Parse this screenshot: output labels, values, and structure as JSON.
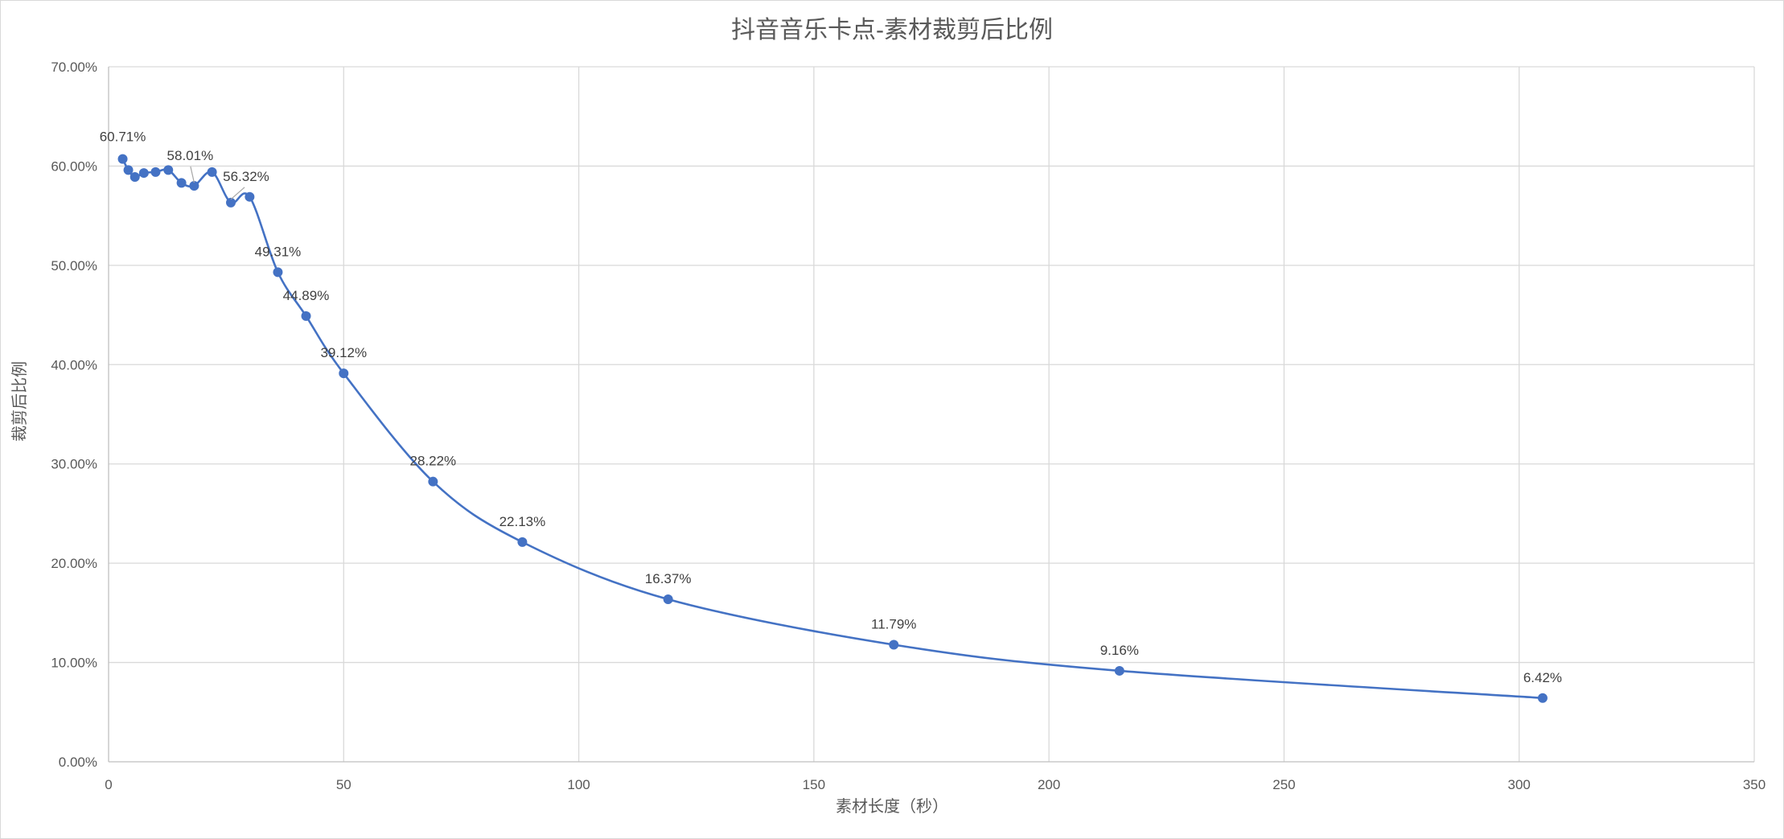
{
  "chart_data": {
    "type": "scatter",
    "title": "抖音音乐卡点-素材裁剪后比例",
    "xlabel": "素材长度（秒）",
    "ylabel": "裁剪后比例",
    "xlim": [
      0,
      350
    ],
    "ylim": [
      0,
      0.7
    ],
    "x_ticks": [
      0,
      50,
      100,
      150,
      200,
      250,
      300,
      350
    ],
    "y_ticks": [
      0,
      0.1,
      0.2,
      0.3,
      0.4,
      0.5,
      0.6,
      0.7
    ],
    "y_tick_labels": [
      "0.00%",
      "10.00%",
      "20.00%",
      "30.00%",
      "40.00%",
      "50.00%",
      "60.00%",
      "70.00%"
    ],
    "x_tick_labels": [
      "0",
      "50",
      "100",
      "150",
      "200",
      "250",
      "300",
      "350"
    ],
    "grid": true,
    "smooth": true,
    "marker": "circle",
    "color": "#4472c4",
    "series": [
      {
        "x": [
          3,
          4.2,
          5.6,
          7.5,
          10,
          12.7,
          15.5,
          18.2,
          22,
          26,
          30,
          36,
          42,
          50,
          69,
          88,
          119,
          167,
          215,
          305
        ],
        "y": [
          0.6071,
          0.596,
          0.589,
          0.593,
          0.594,
          0.596,
          0.583,
          0.5801,
          0.594,
          0.5632,
          0.569,
          0.4931,
          0.4489,
          0.3912,
          0.2822,
          0.2213,
          0.1637,
          0.1179,
          0.0916,
          0.0642
        ]
      }
    ],
    "data_labels": [
      {
        "x": 3,
        "y": 0.6071,
        "text": "60.71%"
      },
      {
        "x": 18.2,
        "y": 0.5801,
        "text": "58.01%"
      },
      {
        "x": 26,
        "y": 0.5632,
        "text": "56.32%"
      },
      {
        "x": 36,
        "y": 0.4931,
        "text": "49.31%"
      },
      {
        "x": 42,
        "y": 0.4489,
        "text": "44.89%"
      },
      {
        "x": 50,
        "y": 0.3912,
        "text": "39.12%"
      },
      {
        "x": 69,
        "y": 0.2822,
        "text": "28.22%"
      },
      {
        "x": 88,
        "y": 0.2213,
        "text": "22.13%"
      },
      {
        "x": 119,
        "y": 0.1637,
        "text": "16.37%"
      },
      {
        "x": 167,
        "y": 0.1179,
        "text": "11.79%"
      },
      {
        "x": 215,
        "y": 0.0916,
        "text": "9.16%"
      },
      {
        "x": 305,
        "y": 0.0642,
        "text": "6.42%"
      }
    ]
  }
}
